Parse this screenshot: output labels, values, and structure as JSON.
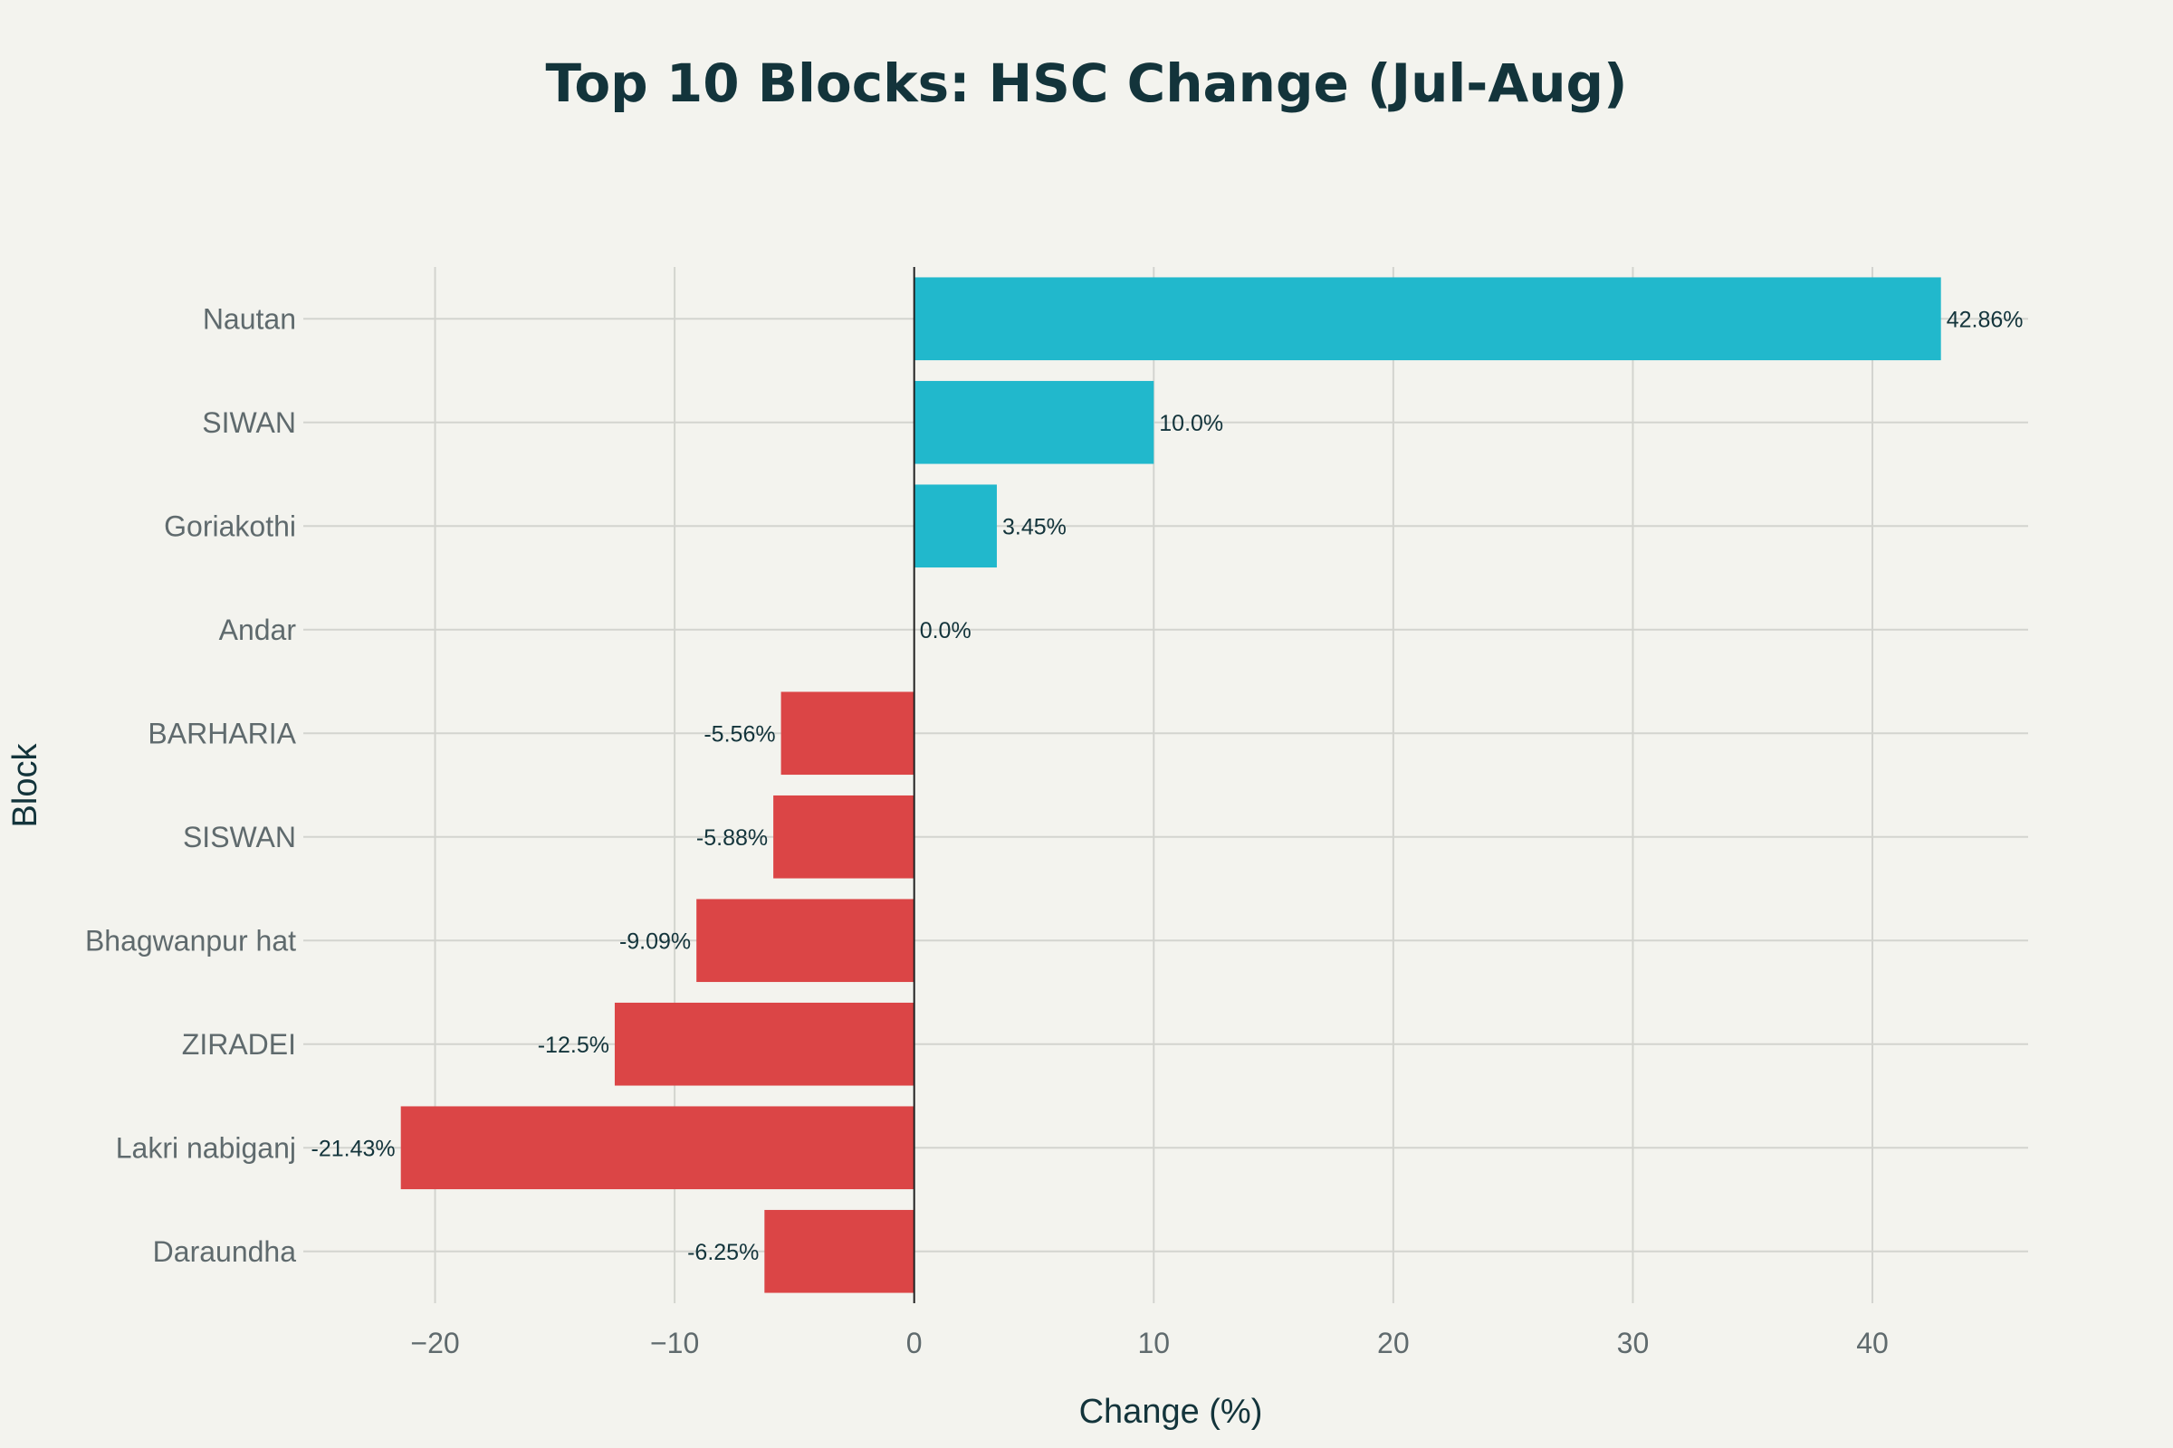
{
  "chart_data": {
    "type": "bar",
    "orientation": "horizontal",
    "title": "Top 10 Blocks: HSC Change (Jul-Aug)",
    "xlabel": "Change (%)",
    "ylabel": "Block",
    "xlim": [
      -25.5,
      46.5
    ],
    "xticks": [
      -20,
      -10,
      0,
      10,
      20,
      30,
      40
    ],
    "xtick_labels": [
      "−20",
      "−10",
      "0",
      "10",
      "20",
      "30",
      "40"
    ],
    "grid": true,
    "legend": "none",
    "categories": [
      "Nautan",
      "SIWAN",
      "Goriakothi",
      "Andar",
      "BARHARIA",
      "SISWAN",
      "Bhagwanpur hat",
      "ZIRADEI",
      "Lakri nabiganj",
      "Daraundha"
    ],
    "values": [
      42.86,
      10.0,
      3.45,
      0.0,
      -5.56,
      -5.88,
      -9.09,
      -12.5,
      -21.43,
      -6.25
    ],
    "data_labels": [
      "42.86%",
      "10.0%",
      "3.45%",
      "0.0%",
      "-5.56%",
      "-5.88%",
      "-9.09%",
      "-12.5%",
      "-21.43%",
      "-6.25%"
    ],
    "colors": {
      "positive": "#21b8cc",
      "negative": "#db4546"
    }
  }
}
